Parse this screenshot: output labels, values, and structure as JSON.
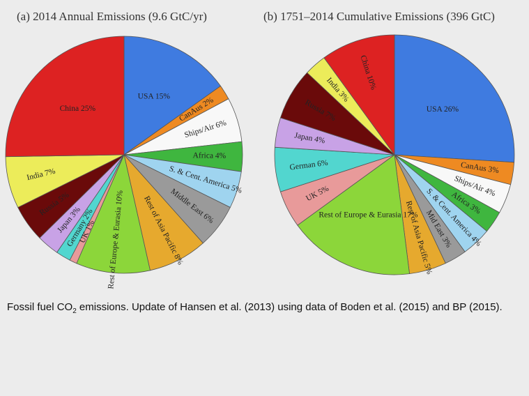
{
  "caption": {
    "pre": "Fossil fuel CO",
    "sub": "2",
    "post": " emissions.  Update of Hansen et al. (2013) using data of Boden et al. (2015) and BP (2015)."
  },
  "chart_data": [
    {
      "type": "pie",
      "title": "(a) 2014 Annual Emissions (9.6 GtC/yr)",
      "start_angle_deg": 0,
      "direction": "clockwise",
      "slices": [
        {
          "label": "USA 15%",
          "value": 15,
          "color": "#3f7be0"
        },
        {
          "label": "CanAus 2%",
          "value": 2,
          "color": "#ee8a22"
        },
        {
          "label": "Ships/Air 6%",
          "value": 6,
          "color": "#f8f8f8"
        },
        {
          "label": "Africa 4%",
          "value": 4,
          "color": "#3fb63f"
        },
        {
          "label": "S. & Cent. America 5%",
          "value": 5,
          "color": "#9fd4ef"
        },
        {
          "label": "Middle East 6%",
          "value": 6,
          "color": "#9a9a9a"
        },
        {
          "label": "Rest of Asia Pacific 8%",
          "value": 8,
          "color": "#e6a92e"
        },
        {
          "label": "Rest of Europe & Eurasia 10%",
          "value": 10,
          "color": "#8cd63a"
        },
        {
          "label": "UK 1%",
          "value": 1,
          "color": "#e89a9a"
        },
        {
          "label": "Germany 2%",
          "value": 2,
          "color": "#52d6cf"
        },
        {
          "label": "Japan 3%",
          "value": 3,
          "color": "#c8a2e6"
        },
        {
          "label": "Russia 5%",
          "value": 5,
          "color": "#6a0a0a"
        },
        {
          "label": "India 7%",
          "value": 7,
          "color": "#ecec5a"
        },
        {
          "label": "China 25%",
          "value": 25,
          "color": "#dd2222"
        }
      ]
    },
    {
      "type": "pie",
      "title": "(b) 1751–2014 Cumulative Emissions (396 GtC)",
      "start_angle_deg": 0,
      "direction": "clockwise",
      "slices": [
        {
          "label": "USA 26%",
          "value": 26,
          "color": "#3f7be0"
        },
        {
          "label": "CanAus 3%",
          "value": 3,
          "color": "#ee8a22"
        },
        {
          "label": "Ships/Air 4%",
          "value": 4,
          "color": "#f8f8f8"
        },
        {
          "label": "Africa 3%",
          "value": 3,
          "color": "#3fb63f"
        },
        {
          "label": "S. & Cent. America 4%",
          "value": 4,
          "color": "#9fd4ef"
        },
        {
          "label": "Mid East 3%",
          "value": 3,
          "color": "#9a9a9a"
        },
        {
          "label": "Rest of Asia Pacific 5%",
          "value": 5,
          "color": "#e6a92e"
        },
        {
          "label": "Rest of Europe & Eurasia 17%",
          "value": 17,
          "color": "#8cd63a"
        },
        {
          "label": "UK 5%",
          "value": 5,
          "color": "#e89a9a"
        },
        {
          "label": "German 6%",
          "value": 6,
          "color": "#52d6cf"
        },
        {
          "label": "Japan 4%",
          "value": 4,
          "color": "#c8a2e6"
        },
        {
          "label": "Russia 7%",
          "value": 7,
          "color": "#6a0a0a"
        },
        {
          "label": "India 3%",
          "value": 3,
          "color": "#ecec5a"
        },
        {
          "label": "China 10%",
          "value": 10,
          "color": "#dd2222"
        }
      ]
    }
  ]
}
